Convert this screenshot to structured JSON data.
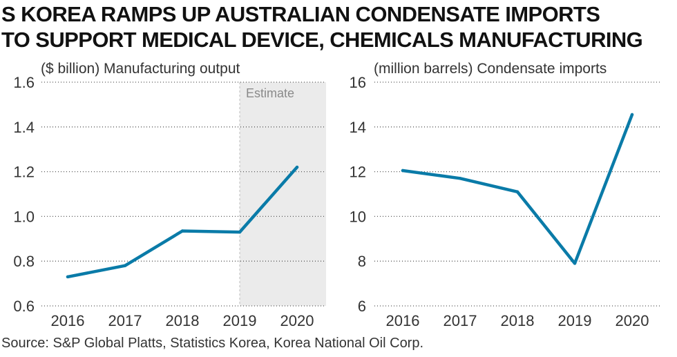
{
  "title": {
    "line1": "S KOREA RAMPS UP AUSTRALIAN CONDENSATE IMPORTS",
    "line2": "TO SUPPORT MEDICAL DEVICE, CHEMICALS MANUFACTURING"
  },
  "source": "Source: S&P Global Platts, Statistics Korea, Korea National Oil Corp.",
  "colors": {
    "line": "#0a7ba8",
    "estimate_band": "#ebebeb",
    "grid": "#555555"
  },
  "chart_data": [
    {
      "type": "line",
      "title": "($ billion) Manufacturing output",
      "categories": [
        "2016",
        "2017",
        "2018",
        "2019",
        "2020"
      ],
      "values": [
        0.73,
        0.78,
        0.935,
        0.93,
        1.22
      ],
      "ylim": [
        0.6,
        1.6
      ],
      "yticks": [
        0.6,
        0.8,
        1.0,
        1.2,
        1.4,
        1.6
      ],
      "ytick_labels": [
        "0.6",
        "0.8",
        "1.0",
        "1.2",
        "1.4",
        "1.6"
      ],
      "estimate_label": "Estimate",
      "estimate_from": "2019"
    },
    {
      "type": "line",
      "title": "(million barrels) Condensate imports",
      "categories": [
        "2016",
        "2017",
        "2018",
        "2019",
        "2020"
      ],
      "values": [
        12.05,
        11.7,
        11.1,
        7.9,
        14.55
      ],
      "ylim": [
        6,
        16
      ],
      "yticks": [
        6,
        8,
        10,
        12,
        14,
        16
      ],
      "ytick_labels": [
        "6",
        "8",
        "10",
        "12",
        "14",
        "16"
      ]
    }
  ]
}
